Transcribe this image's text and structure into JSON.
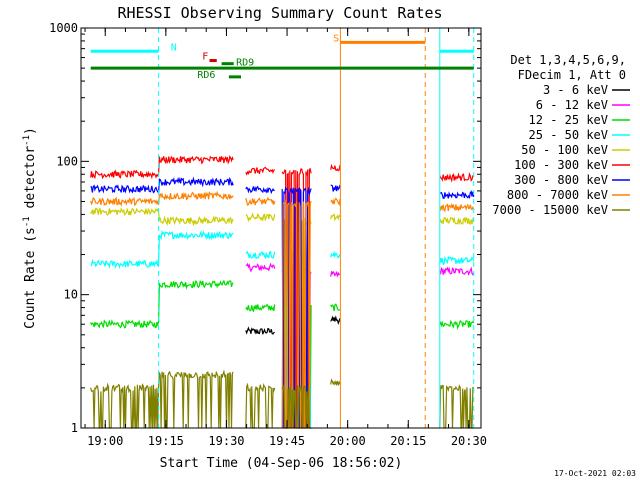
{
  "chart_data": {
    "type": "line",
    "title": "RHESSI Observing Summary Count Rates",
    "xlabel": "Start Time (04-Sep-06 18:56:02)",
    "ylabel_main": "Count Rate (s",
    "ylabel_sup1": "-1",
    "ylabel_mid": " detector",
    "ylabel_sup2": "-1",
    "ylabel_end": ")",
    "y_scale": "log",
    "ylim": [
      1,
      1000
    ],
    "xlim": [
      18.9,
      20.55
    ],
    "y_ticks": [
      {
        "value": 1,
        "label": "1"
      },
      {
        "value": 10,
        "label": "10"
      },
      {
        "value": 100,
        "label": "100"
      },
      {
        "value": 1000,
        "label": "1000"
      }
    ],
    "x_ticks": [
      {
        "value": 19.0,
        "label": "19:00"
      },
      {
        "value": 19.25,
        "label": "19:15"
      },
      {
        "value": 19.5,
        "label": "19:30"
      },
      {
        "value": 19.75,
        "label": "19:45"
      },
      {
        "value": 20.0,
        "label": "20:00"
      },
      {
        "value": 20.25,
        "label": "20:15"
      },
      {
        "value": 20.5,
        "label": "20:30"
      }
    ],
    "legend_header": [
      "Det 1,3,4,5,6,9,",
      "FDecim 1, Att 0"
    ],
    "legend_position": "right",
    "segments": [
      [
        18.94,
        19.53
      ],
      [
        19.58,
        19.7
      ],
      [
        19.73,
        19.85
      ],
      [
        19.93,
        19.97
      ],
      [
        20.38,
        20.52
      ]
    ],
    "series": [
      {
        "name": "3 - 6 keV",
        "color": "#000000",
        "values": [
          0,
          0,
          5.3,
          5.2,
          6.5,
          0
        ]
      },
      {
        "name": "6 - 12 keV",
        "color": "#ff00ff",
        "values": [
          0,
          0,
          16,
          15,
          14,
          15
        ]
      },
      {
        "name": "12 - 25 keV",
        "color": "#00dd00",
        "values": [
          6,
          12,
          8,
          8,
          8,
          6
        ]
      },
      {
        "name": "25 - 50 keV",
        "color": "#00ffff",
        "values": [
          17,
          28,
          20,
          20,
          20,
          18
        ]
      },
      {
        "name": "50 - 100 keV",
        "color": "#cccc00",
        "values": [
          42,
          36,
          38,
          36,
          38,
          36
        ]
      },
      {
        "name": "100 - 300 keV",
        "color": "#ff0000",
        "values": [
          80,
          103,
          85,
          83,
          90,
          76
        ]
      },
      {
        "name": "300 - 800 keV",
        "color": "#0000ff",
        "values": [
          62,
          70,
          62,
          60,
          63,
          56
        ]
      },
      {
        "name": "800 - 7000 keV",
        "color": "#ff8000",
        "values": [
          50,
          55,
          50,
          48,
          50,
          45
        ]
      },
      {
        "name": "7000 - 15000 keV",
        "color": "#808000",
        "values": [
          2,
          2.5,
          2,
          2,
          2.2,
          2
        ]
      }
    ],
    "flag_lines": [
      {
        "color": "#00ffff",
        "x1": 18.94,
        "x2": 19.22,
        "y": 670
      },
      {
        "color": "#00ffff",
        "x1": 20.38,
        "x2": 20.52,
        "y": 670
      },
      {
        "color": "#ff8000",
        "x1": 19.97,
        "x2": 20.32,
        "y": 780
      },
      {
        "color": "#008000",
        "x1": 18.94,
        "x2": 20.52,
        "y": 500
      },
      {
        "color": "#cc0000",
        "x1": 19.43,
        "x2": 19.46,
        "y": 570
      },
      {
        "color": "#008000",
        "x1": 19.48,
        "x2": 19.53,
        "y": 540
      },
      {
        "color": "#008000",
        "x1": 19.51,
        "x2": 19.56,
        "y": 430
      }
    ],
    "flag_labels": [
      {
        "text": "N",
        "color": "#00ffff",
        "x": 19.27,
        "y": 680
      },
      {
        "text": "S",
        "color": "#ff8000",
        "x": 19.94,
        "y": 790
      },
      {
        "text": "F",
        "color": "#cc0000",
        "x": 19.4,
        "y": 580
      },
      {
        "text": "RD9",
        "color": "#008000",
        "x": 19.54,
        "y": 525
      },
      {
        "text": "RD6",
        "color": "#008000",
        "x": 19.38,
        "y": 420
      }
    ],
    "vlines": [
      {
        "x": 19.22,
        "color": "#00ffff",
        "dashed": true
      },
      {
        "x": 20.38,
        "color": "#00ffff",
        "dashed": false
      },
      {
        "x": 20.52,
        "color": "#00ffff",
        "dashed": true
      },
      {
        "x": 19.97,
        "color": "#ff8000",
        "dashed": false
      },
      {
        "x": 20.32,
        "color": "#ff8000",
        "dashed": true
      }
    ]
  },
  "footer": {
    "timestamp": "17-Oct-2021 02:03"
  }
}
